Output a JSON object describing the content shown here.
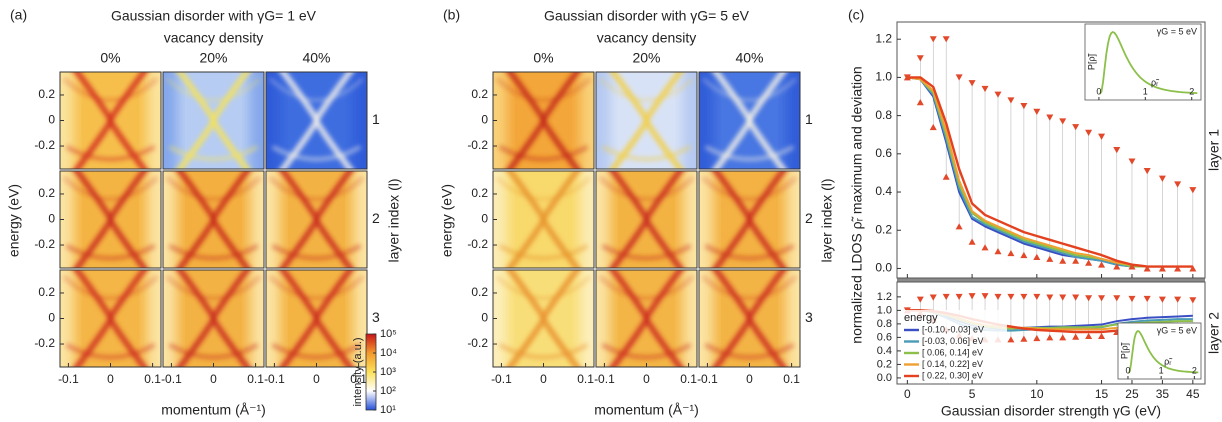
{
  "chart_data": [
    {
      "type": "heatmap",
      "panel": "(a)",
      "title": "Gaussian disorder with γG= 1 eV",
      "subtitle": "vacancy density",
      "columns": [
        "0%",
        "20%",
        "40%"
      ],
      "rows": [
        "1",
        "2",
        "3"
      ],
      "row_axis_label": "layer index (l)",
      "xlabel": "momentum (Å⁻¹)",
      "ylabel": "energy (eV)",
      "xlim": [
        -0.12,
        0.12
      ],
      "xticks": [
        -0.1,
        0,
        0.1
      ],
      "ylim": [
        -0.38,
        0.38
      ],
      "yticks": [
        0.2,
        0,
        -0.2
      ],
      "cells": [
        [
          {
            "bg": "#f6bf4c",
            "edge": "#fbe7a6",
            "line": "#d32f1e"
          },
          {
            "bg": "#b6ccf3",
            "edge": "#7fa3ea",
            "line": "#f4e25c"
          },
          {
            "bg": "#3e6de0",
            "edge": "#2f5ad8",
            "line": "#f1efea"
          }
        ],
        [
          {
            "bg": "#f4b443",
            "edge": "#fce9ad",
            "line": "#c92b1c"
          },
          {
            "bg": "#f3b041",
            "edge": "#fce9ad",
            "line": "#c82a1b"
          },
          {
            "bg": "#f3b344",
            "edge": "#fce9ad",
            "line": "#c92b1c"
          }
        ],
        [
          {
            "bg": "#f4b646",
            "edge": "#fce9ad",
            "line": "#cf2e1d"
          },
          {
            "bg": "#f3b244",
            "edge": "#fce9ad",
            "line": "#c92b1c"
          },
          {
            "bg": "#f3b444",
            "edge": "#fce9ad",
            "line": "#cb2c1c"
          }
        ]
      ]
    },
    {
      "type": "colorbar",
      "ylabel": "intensity (a.u.)",
      "log": true,
      "ylim": [
        10,
        100000
      ],
      "yticks": [
        {
          "value": 10,
          "label": "10¹"
        },
        {
          "value": 100,
          "label": "10²"
        },
        {
          "value": 1000,
          "label": "10³"
        },
        {
          "value": 10000,
          "label": "10⁴"
        },
        {
          "value": 100000,
          "label": "10⁵"
        }
      ],
      "colors": [
        "#2450d8",
        "#ffffff",
        "#fbe15a",
        "#f39a2c",
        "#c8141a"
      ]
    },
    {
      "type": "heatmap",
      "panel": "(b)",
      "title": "Gaussian disorder with γG= 5 eV",
      "subtitle": "vacancy density",
      "columns": [
        "0%",
        "20%",
        "40%"
      ],
      "rows": [
        "1",
        "2",
        "3"
      ],
      "row_axis_label": "layer index (l)",
      "xlabel": "momentum (Å⁻¹)",
      "ylabel": "energy (eV)",
      "xlim": [
        -0.12,
        0.12
      ],
      "xticks": [
        -0.1,
        0,
        0.1
      ],
      "ylim": [
        -0.38,
        0.38
      ],
      "yticks": [
        0.2,
        0,
        -0.2
      ],
      "cells": [
        [
          {
            "bg": "#f3a639",
            "edge": "#f9d680",
            "line": "#c3281a"
          },
          {
            "bg": "#d8e2f6",
            "edge": "#b0c6f1",
            "line": "#f2cf48"
          },
          {
            "bg": "#4876e2",
            "edge": "#2f5ad8",
            "line": "#f5f1e6"
          }
        ],
        [
          {
            "bg": "#f8d96c",
            "edge": "#fcefbd",
            "line": "#e8932d"
          },
          {
            "bg": "#f3b343",
            "edge": "#fce9ad",
            "line": "#c92b1c"
          },
          {
            "bg": "#f3b243",
            "edge": "#fce9ad",
            "line": "#c92b1c"
          }
        ],
        [
          {
            "bg": "#f8de78",
            "edge": "#fdf1c3",
            "line": "#e9902f"
          },
          {
            "bg": "#f3b546",
            "edge": "#fce9ad",
            "line": "#cc2c1c"
          },
          {
            "bg": "#f3b446",
            "edge": "#fce9ad",
            "line": "#cb2c1c"
          }
        ]
      ]
    },
    {
      "type": "line",
      "panel": "(c)",
      "ylabel": "normalized LDOS ρ̃ᵣ maximum and deviation",
      "xlabel": "Gaussian disorder strength γG (eV)",
      "x": [
        0,
        1,
        2,
        3,
        4,
        5,
        6,
        7,
        8,
        9,
        10,
        11,
        12,
        13,
        14,
        15,
        20,
        25,
        30,
        35,
        40,
        45
      ],
      "xlim": [
        -0.8,
        49
      ],
      "xticks": [
        0,
        5,
        10,
        15,
        25,
        35,
        45
      ],
      "legend_title": "energy",
      "marker_color": "#e2482a",
      "subplots": [
        {
          "label": "layer 1",
          "ylim": [
            -0.05,
            1.29
          ],
          "yticks": [
            {
              "value": 0,
              "label": "0.0"
            },
            0.2,
            0.4,
            0.6,
            0.8,
            {
              "value": 1,
              "label": "1.0"
            },
            1.2
          ],
          "series": [
            {
              "name": "[-0.10,-0.03] eV",
              "color": "#3a4fc4",
              "values": [
                1,
                0.99,
                0.9,
                0.66,
                0.4,
                0.26,
                0.22,
                0.19,
                0.16,
                0.13,
                0.11,
                0.09,
                0.07,
                0.06,
                0.05,
                0.04,
                0.02,
                0.01,
                0.01,
                0.01,
                0.01,
                0.01
              ]
            },
            {
              "name": "[-0.03, 0.06] eV",
              "color": "#4a9ab8",
              "values": [
                1,
                0.99,
                0.91,
                0.68,
                0.42,
                0.27,
                0.23,
                0.2,
                0.17,
                0.14,
                0.12,
                0.1,
                0.08,
                0.06,
                0.05,
                0.04,
                0.02,
                0.01,
                0.01,
                0.01,
                0.01,
                0.01
              ]
            },
            {
              "name": "[ 0.06, 0.14] eV",
              "color": "#8cc04a",
              "values": [
                1,
                0.99,
                0.92,
                0.7,
                0.44,
                0.29,
                0.24,
                0.21,
                0.18,
                0.15,
                0.13,
                0.11,
                0.09,
                0.07,
                0.06,
                0.05,
                0.03,
                0.01,
                0.01,
                0.01,
                0.01,
                0.01
              ]
            },
            {
              "name": "[ 0.14, 0.22] eV",
              "color": "#f0a030",
              "values": [
                1,
                0.99,
                0.93,
                0.72,
                0.46,
                0.3,
                0.25,
                0.22,
                0.19,
                0.16,
                0.14,
                0.12,
                0.1,
                0.08,
                0.07,
                0.05,
                0.03,
                0.02,
                0.01,
                0.01,
                0.01,
                0.01
              ]
            },
            {
              "name": "[ 0.22, 0.30] eV",
              "color": "#e3411f",
              "values": [
                1,
                1,
                0.95,
                0.76,
                0.52,
                0.34,
                0.28,
                0.25,
                0.22,
                0.19,
                0.17,
                0.15,
                0.13,
                0.11,
                0.09,
                0.07,
                0.04,
                0.02,
                0.01,
                0.01,
                0.01,
                0.01
              ]
            }
          ],
          "maximum": [
            1,
            1.1,
            1.2,
            1.2,
            1.0,
            0.97,
            0.94,
            0.91,
            0.88,
            0.85,
            0.82,
            0.79,
            0.77,
            0.74,
            0.71,
            0.69,
            0.62,
            0.56,
            0.51,
            0.47,
            0.44,
            0.41
          ],
          "deviation": [
            1,
            0.87,
            0.74,
            0.48,
            0.22,
            0.14,
            0.11,
            0.09,
            0.08,
            0.07,
            0.06,
            0.05,
            0.04,
            0.04,
            0.03,
            0.02,
            0.01,
            0.01,
            0,
            0,
            0,
            0
          ],
          "inset": {
            "ylabel": "P[ρ̃]",
            "note": "γG = 5 eV",
            "xlabel": "ρ̃ᵣ",
            "xlim": [
              -0.3,
              2.2
            ],
            "xticks": [
              0,
              1,
              2
            ],
            "color": "#8cc04a"
          }
        },
        {
          "label": "layer 2",
          "ylim": [
            -0.09,
            1.42
          ],
          "yticks": [
            {
              "value": 0,
              "label": "0.0"
            },
            0.2,
            0.4,
            0.6,
            0.8,
            {
              "value": 1,
              "label": "1.0"
            },
            1.2
          ],
          "series": [
            {
              "color": "#3a4fc4",
              "values": [
                1,
                1,
                0.98,
                0.92,
                0.84,
                0.78,
                0.75,
                0.73,
                0.73,
                0.74,
                0.75,
                0.76,
                0.76,
                0.77,
                0.78,
                0.79,
                0.84,
                0.87,
                0.89,
                0.9,
                0.91,
                0.92
              ]
            },
            {
              "color": "#4a9ab8",
              "values": [
                1,
                1,
                0.97,
                0.89,
                0.8,
                0.74,
                0.71,
                0.7,
                0.7,
                0.71,
                0.72,
                0.72,
                0.73,
                0.73,
                0.74,
                0.75,
                0.8,
                0.83,
                0.85,
                0.86,
                0.87,
                0.87
              ]
            },
            {
              "color": "#8cc04a",
              "values": [
                1,
                1,
                0.98,
                0.93,
                0.86,
                0.8,
                0.76,
                0.74,
                0.73,
                0.74,
                0.74,
                0.74,
                0.75,
                0.75,
                0.75,
                0.76,
                0.79,
                0.81,
                0.82,
                0.83,
                0.84,
                0.84
              ]
            },
            {
              "color": "#f0a030",
              "values": [
                1,
                1,
                0.98,
                0.94,
                0.88,
                0.82,
                0.78,
                0.76,
                0.75,
                0.74,
                0.73,
                0.72,
                0.72,
                0.72,
                0.72,
                0.72,
                0.74,
                0.76,
                0.77,
                0.78,
                0.79,
                0.8
              ]
            },
            {
              "color": "#e3411f",
              "values": [
                1,
                1,
                0.99,
                0.96,
                0.92,
                0.87,
                0.83,
                0.79,
                0.76,
                0.73,
                0.71,
                0.7,
                0.69,
                0.68,
                0.68,
                0.68,
                0.7,
                0.72,
                0.73,
                0.74,
                0.75,
                0.76
              ]
            }
          ],
          "maximum": [
            1,
            1.16,
            1.19,
            1.2,
            1.2,
            1.21,
            1.21,
            1.2,
            1.2,
            1.2,
            1.2,
            1.19,
            1.19,
            1.19,
            1.18,
            1.18,
            1.18,
            1.17,
            1.17,
            1.16,
            1.16,
            1.15
          ],
          "deviation": [
            1,
            0.96,
            0.86,
            0.72,
            0.63,
            0.59,
            0.57,
            0.57,
            0.57,
            0.58,
            0.59,
            0.6,
            0.6,
            0.61,
            0.62,
            0.62,
            0.68,
            0.71,
            0.73,
            0.75,
            0.76,
            0.77
          ],
          "inset": {
            "ylabel": "P[ρ̃]",
            "note": "γG = 5 eV",
            "xlabel": "ρ̃ᵣ",
            "xlim": [
              -0.3,
              2.2
            ],
            "xticks": [
              0,
              1,
              2
            ],
            "color": "#8cc04a"
          }
        }
      ]
    }
  ]
}
